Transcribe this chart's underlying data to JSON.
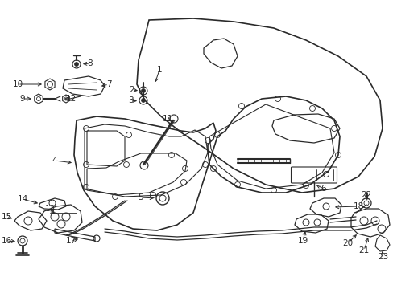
{
  "bg_color": "#ffffff",
  "lc": "#2a2a2a",
  "lw": 0.8,
  "fs": 7.5,
  "fig_w": 4.89,
  "fig_h": 3.6,
  "dpi": 100
}
